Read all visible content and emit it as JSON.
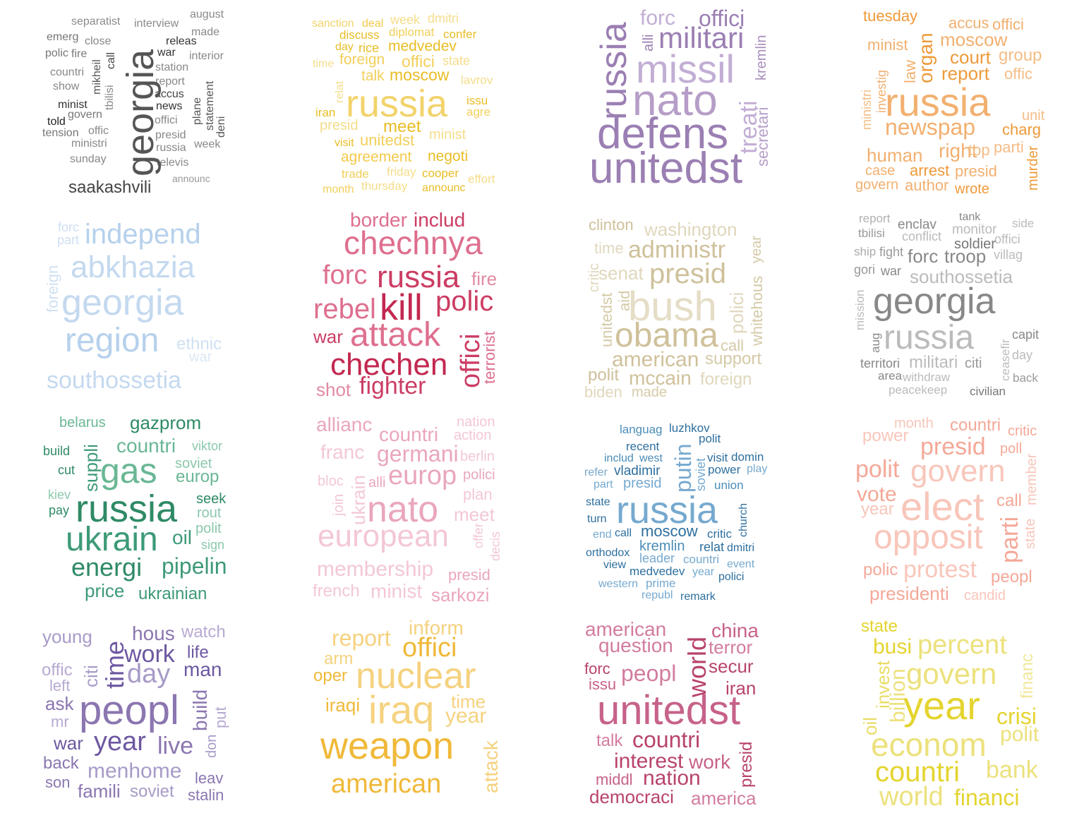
{
  "colors": {
    "c1": "#555555",
    "c2": "#f2cf5a",
    "c3": "#a98fbd",
    "c4": "#f2a856",
    "c5": "#bcd5ee",
    "c6": "#cf5a7e",
    "c7": "#d5caa7",
    "c8": "#aaaaaa",
    "c9": "#3d9a77",
    "c10": "#eeb0c6",
    "c11": "#4b8db8",
    "c12": "#f4a898",
    "c13": "#8b76b0",
    "c14": "#f2c04b",
    "c15": "#c7628a",
    "c16": "#e4da48"
  },
  "clouds": [
    {
      "words": [
        "separatist",
        "interview",
        "august",
        "emerg",
        "close",
        "made",
        "releas",
        "polic",
        "fire",
        "call",
        "war",
        "interior",
        "station",
        "countri",
        "mikheil",
        "report",
        "show",
        "accus",
        "plane",
        "tbilisi",
        "statement",
        "minist",
        "news",
        "govern",
        "offici",
        "told",
        "deni",
        "tension",
        "offic",
        "presid",
        "week",
        "ministri",
        "russia",
        "sunday",
        "televis",
        "announc",
        "saakashvili",
        "georgia"
      ]
    },
    {
      "words": [
        "sanction",
        "deal",
        "week",
        "dmitri",
        "discuss",
        "diplomat",
        "confer",
        "day",
        "rice",
        "medvedev",
        "time",
        "foreign",
        "offici",
        "state",
        "talk",
        "moscow",
        "lavrov",
        "relat",
        "issu",
        "russia",
        "iran",
        "agre",
        "presid",
        "meet",
        "minist",
        "visit",
        "unitedst",
        "agreement",
        "negoti",
        "trade",
        "friday",
        "cooper",
        "effort",
        "month",
        "thursday",
        "announc"
      ]
    },
    {
      "words": [
        "forc",
        "offici",
        "alli",
        "russia",
        "militari",
        "missil",
        "kremlin",
        "nato",
        "treati",
        "secretari",
        "defens",
        "unitedst"
      ]
    },
    {
      "words": [
        "tuesday",
        "accus",
        "offici",
        "minist",
        "moscow",
        "law",
        "organ",
        "court",
        "group",
        "investig",
        "report",
        "offic",
        "ministri",
        "russia",
        "unit",
        "newspap",
        "charg",
        "human",
        "right",
        "top",
        "parti",
        "case",
        "arrest",
        "presid",
        "murder",
        "govern",
        "author",
        "wrote"
      ]
    },
    {
      "words": [
        "forc",
        "part",
        "independ",
        "abkhazia",
        "foreign",
        "georgia",
        "region",
        "ethnic",
        "war",
        "southossetia"
      ]
    },
    {
      "words": [
        "border",
        "includ",
        "chechnya",
        "forc",
        "russia",
        "fire",
        "rebel",
        "kill",
        "polic",
        "war",
        "attack",
        "offici",
        "terrorist",
        "chechen",
        "shot",
        "fighter"
      ]
    },
    {
      "words": [
        "clinton",
        "washington",
        "time",
        "administr",
        "year",
        "critic",
        "senat",
        "presid",
        "aid",
        "unitedst",
        "bush",
        "polici",
        "whitehous",
        "obama",
        "call",
        "american",
        "support",
        "polit",
        "mccain",
        "foreign",
        "biden",
        "made"
      ]
    },
    {
      "words": [
        "report",
        "tank",
        "side",
        "tbilisi",
        "enclav",
        "monitor",
        "conflict",
        "offici",
        "soldier",
        "ship",
        "fight",
        "forc",
        "troop",
        "villag",
        "gori",
        "war",
        "southossetia",
        "mission",
        "georgia",
        "aug",
        "russia",
        "capit",
        "ceasefir",
        "day",
        "territori",
        "militari",
        "citi",
        "area",
        "withdraw",
        "back",
        "peacekeep",
        "civilian"
      ]
    },
    {
      "words": [
        "belarus",
        "gazprom",
        "build",
        "suppli",
        "countri",
        "viktor",
        "cut",
        "gas",
        "soviet",
        "europ",
        "kiev",
        "seek",
        "pay",
        "russia",
        "rout",
        "oil",
        "polit",
        "ukrain",
        "sign",
        "energi",
        "pipelin",
        "price",
        "ukrainian"
      ]
    },
    {
      "words": [
        "allianc",
        "nation",
        "countri",
        "action",
        "franc",
        "germani",
        "berlin",
        "bloc",
        "ukrain",
        "alli",
        "europ",
        "polici",
        "join",
        "nato",
        "plan",
        "meet",
        "european",
        "offer",
        "decis",
        "membership",
        "presid",
        "french",
        "minist",
        "sarkozi"
      ]
    },
    {
      "words": [
        "languag",
        "luzhkov",
        "polit",
        "recent",
        "includ",
        "west",
        "putin",
        "soviet",
        "visit",
        "domin",
        "refer",
        "vladimir",
        "power",
        "play",
        "part",
        "presid",
        "union",
        "state",
        "russia",
        "church",
        "turn",
        "end",
        "call",
        "moscow",
        "critic",
        "kremlin",
        "relat",
        "orthodox",
        "dmitri",
        "leader",
        "countri",
        "view",
        "medvedev",
        "year",
        "event",
        "western",
        "prime",
        "polici",
        "republ",
        "remark"
      ]
    },
    {
      "words": [
        "month",
        "countri",
        "critic",
        "power",
        "presid",
        "poll",
        "polit",
        "govern",
        "member",
        "vote",
        "elect",
        "call",
        "year",
        "parti",
        "state",
        "opposit",
        "polic",
        "protest",
        "peopl",
        "presidenti",
        "candid"
      ]
    },
    {
      "words": [
        "young",
        "hous",
        "watch",
        "time",
        "work",
        "life",
        "offic",
        "citi",
        "day",
        "man",
        "left",
        "build",
        "ask",
        "peopl",
        "put",
        "mr",
        "war",
        "year",
        "don",
        "live",
        "back",
        "menhome",
        "leav",
        "son",
        "famili",
        "soviet",
        "stalin"
      ]
    },
    {
      "words": [
        "inform",
        "report",
        "offici",
        "arm",
        "oper",
        "nuclear",
        "iraqi",
        "iraq",
        "time",
        "year",
        "weapon",
        "attack",
        "american"
      ]
    },
    {
      "words": [
        "american",
        "world",
        "china",
        "question",
        "terror",
        "forc",
        "peopl",
        "secur",
        "issu",
        "iran",
        "unitedst",
        "talk",
        "countri",
        "presid",
        "interest",
        "work",
        "middl",
        "nation",
        "democraci",
        "america"
      ]
    },
    {
      "words": [
        "state",
        "busi",
        "percent",
        "invest",
        "billion",
        "govern",
        "financ",
        "oil",
        "year",
        "crisi",
        "polit",
        "econom",
        "countri",
        "bank",
        "world",
        "financi"
      ]
    }
  ]
}
